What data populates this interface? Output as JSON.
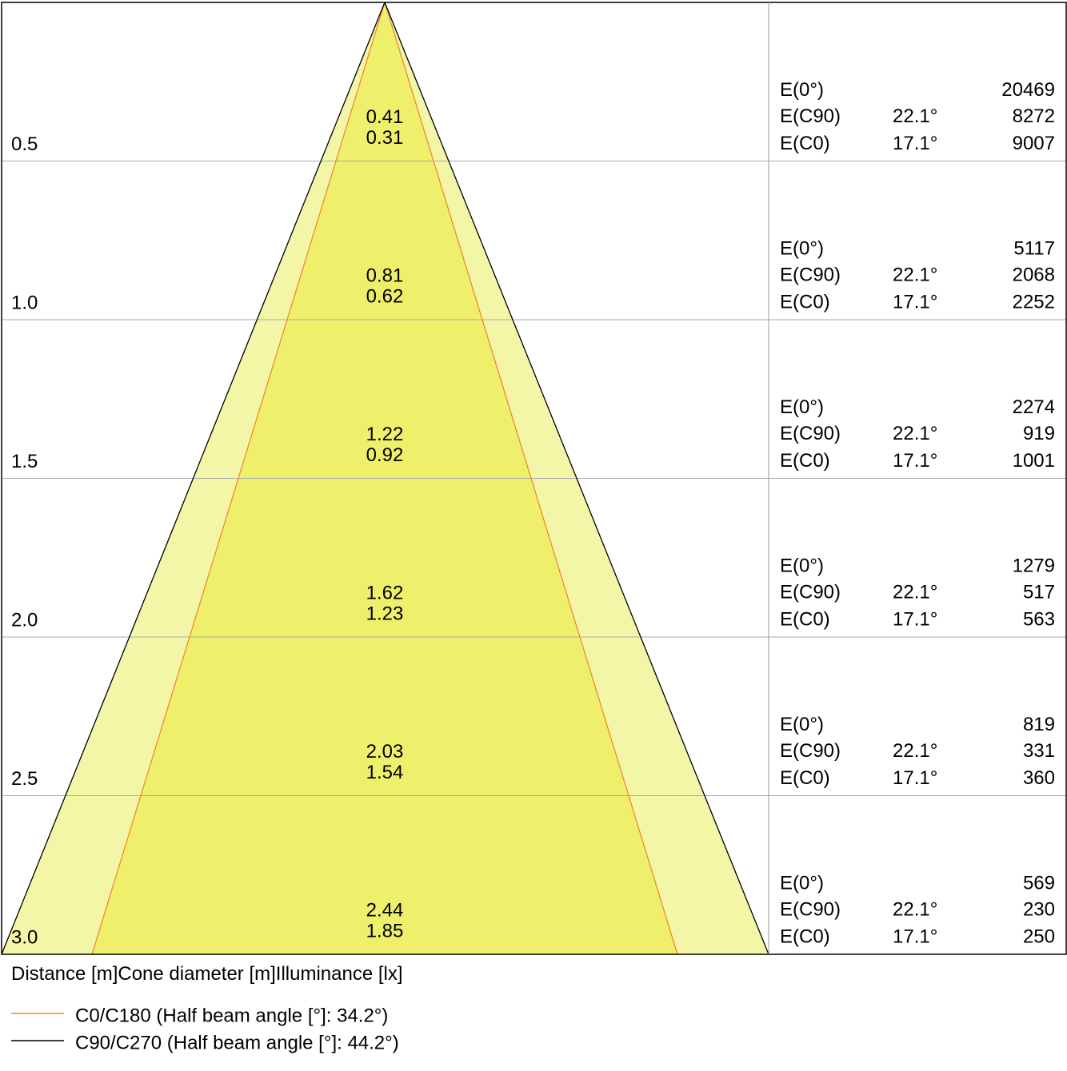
{
  "rows": [
    {
      "distance": "0.5",
      "diameters": [
        "0.41",
        "0.31"
      ],
      "entries": [
        {
          "label": "E(0°)",
          "value": "20469"
        },
        {
          "label": "E(C90)",
          "angle": "22.1°",
          "value": "8272"
        },
        {
          "label": "E(C0)",
          "angle": "17.1°",
          "value": "9007"
        }
      ]
    },
    {
      "distance": "1.0",
      "diameters": [
        "0.81",
        "0.62"
      ],
      "entries": [
        {
          "label": "E(0°)",
          "value": "5117"
        },
        {
          "label": "E(C90)",
          "angle": "22.1°",
          "value": "2068"
        },
        {
          "label": "E(C0)",
          "angle": "17.1°",
          "value": "2252"
        }
      ]
    },
    {
      "distance": "1.5",
      "diameters": [
        "1.22",
        "0.92"
      ],
      "entries": [
        {
          "label": "E(0°)",
          "value": "2274"
        },
        {
          "label": "E(C90)",
          "angle": "22.1°",
          "value": "919"
        },
        {
          "label": "E(C0)",
          "angle": "17.1°",
          "value": "1001"
        }
      ]
    },
    {
      "distance": "2.0",
      "diameters": [
        "1.62",
        "1.23"
      ],
      "entries": [
        {
          "label": "E(0°)",
          "value": "1279"
        },
        {
          "label": "E(C90)",
          "angle": "22.1°",
          "value": "517"
        },
        {
          "label": "E(C0)",
          "angle": "17.1°",
          "value": "563"
        }
      ]
    },
    {
      "distance": "2.5",
      "diameters": [
        "2.03",
        "1.54"
      ],
      "entries": [
        {
          "label": "E(0°)",
          "value": "819"
        },
        {
          "label": "E(C90)",
          "angle": "22.1°",
          "value": "331"
        },
        {
          "label": "E(C0)",
          "angle": "17.1°",
          "value": "360"
        }
      ]
    },
    {
      "distance": "3.0",
      "diameters": [
        "2.44",
        "1.85"
      ],
      "entries": [
        {
          "label": "E(0°)",
          "value": "569"
        },
        {
          "label": "E(C90)",
          "angle": "22.1°",
          "value": "230"
        },
        {
          "label": "E(C0)",
          "angle": "17.1°",
          "value": "250"
        }
      ]
    }
  ],
  "headers": [
    "Distance [m]",
    "Cone diameter [m]",
    "Illuminance [lx]"
  ],
  "legend": [
    {
      "label": "C0/C180 (Half beam angle [°]: 34.2°)",
      "color": "#f08a2c"
    },
    {
      "label": "C90/C270 (Half beam angle [°]: 44.2°)",
      "color": "#000000"
    }
  ]
}
